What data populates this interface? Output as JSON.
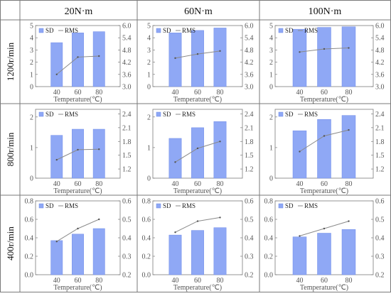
{
  "table": {
    "columns": [
      "20N·m",
      "60N·m",
      "100N·m"
    ],
    "rows": [
      "1200r/min",
      "800r/min",
      "400r/min"
    ]
  },
  "colors": {
    "bar": "#8fa8f5",
    "bar_stroke": "#6f8be8",
    "line": "#8a8a8a",
    "grid": "#7a7a7a",
    "text": "#555555",
    "border": "#7a7a7a"
  },
  "chart_data": [
    {
      "row": "1200r/min",
      "column": "20N·m",
      "type": "bar+line",
      "categories": [
        "40",
        "60",
        "80"
      ],
      "xlabel": "Temperature(℃)",
      "legend": [
        "SD",
        "RMS"
      ],
      "series": [
        {
          "name": "SD",
          "type": "bar",
          "axis": "left",
          "values": [
            3.6,
            4.4,
            4.5
          ]
        },
        {
          "name": "RMS",
          "type": "line",
          "axis": "right",
          "values": [
            3.6,
            4.45,
            4.5
          ]
        }
      ],
      "left_axis": {
        "ylim": [
          0,
          5
        ],
        "ticks": [
          "0",
          "1",
          "2",
          "3",
          "4",
          "5"
        ]
      },
      "right_axis": {
        "ylim": [
          3.0,
          6.0
        ],
        "ticks": [
          "3.0",
          "3.6",
          "4.2",
          "4.8",
          "5.4",
          "6.0"
        ]
      }
    },
    {
      "row": "1200r/min",
      "column": "60N·m",
      "type": "bar+line",
      "categories": [
        "40",
        "60",
        "80"
      ],
      "xlabel": "Temperature(℃)",
      "legend": [
        "SD",
        "RMS"
      ],
      "series": [
        {
          "name": "SD",
          "type": "bar",
          "axis": "left",
          "values": [
            4.4,
            4.6,
            4.8
          ]
        },
        {
          "name": "RMS",
          "type": "line",
          "axis": "right",
          "values": [
            4.4,
            4.6,
            4.75
          ]
        }
      ],
      "left_axis": {
        "ylim": [
          0,
          5
        ],
        "ticks": [
          "0",
          "1",
          "2",
          "3",
          "4",
          "5"
        ]
      },
      "right_axis": {
        "ylim": [
          3.0,
          6.0
        ],
        "ticks": [
          "3.0",
          "3.6",
          "4.2",
          "4.8",
          "5.4",
          "6.0"
        ]
      }
    },
    {
      "row": "1200r/min",
      "column": "100N·m",
      "type": "bar+line",
      "categories": [
        "40",
        "60",
        "80"
      ],
      "xlabel": "Temperature(℃)",
      "legend": [
        "SD",
        "RMS"
      ],
      "series": [
        {
          "name": "SD",
          "type": "bar",
          "axis": "left",
          "values": [
            4.7,
            4.85,
            4.9
          ]
        },
        {
          "name": "RMS",
          "type": "line",
          "axis": "right",
          "values": [
            4.7,
            4.85,
            4.9
          ]
        }
      ],
      "left_axis": {
        "ylim": [
          0,
          5
        ],
        "ticks": [
          "0",
          "1",
          "2",
          "3",
          "4",
          "5"
        ]
      },
      "right_axis": {
        "ylim": [
          3.0,
          6.0
        ],
        "ticks": [
          "3.0",
          "3.6",
          "4.2",
          "4.8",
          "5.4",
          "6.0"
        ]
      }
    },
    {
      "row": "800r/min",
      "column": "20N·m",
      "type": "bar+line",
      "categories": [
        "40",
        "60",
        "80"
      ],
      "xlabel": "Temperature(℃)",
      "legend": [
        "SD",
        "RMS"
      ],
      "series": [
        {
          "name": "SD",
          "type": "bar",
          "axis": "left",
          "values": [
            1.4,
            1.6,
            1.6
          ]
        },
        {
          "name": "RMS",
          "type": "line",
          "axis": "right",
          "values": [
            1.4,
            1.62,
            1.63
          ]
        }
      ],
      "left_axis": {
        "ylim": [
          0,
          2.25
        ],
        "ticks": [
          "0",
          "1",
          "2"
        ]
      },
      "right_axis": {
        "ylim": [
          1.0,
          2.5
        ],
        "ticks": [
          "1.2",
          "1.5",
          "1.8",
          "2.1",
          "2.4"
        ]
      }
    },
    {
      "row": "800r/min",
      "column": "60N·m",
      "type": "bar+line",
      "categories": [
        "40",
        "60",
        "80"
      ],
      "xlabel": "Temperature(℃)",
      "legend": [
        "SD",
        "RMS"
      ],
      "series": [
        {
          "name": "SD",
          "type": "bar",
          "axis": "left",
          "values": [
            1.3,
            1.65,
            1.85
          ]
        },
        {
          "name": "RMS",
          "type": "line",
          "axis": "right",
          "values": [
            1.35,
            1.65,
            1.8
          ]
        }
      ],
      "left_axis": {
        "ylim": [
          0,
          2.25
        ],
        "ticks": [
          "0",
          "1",
          "2"
        ]
      },
      "right_axis": {
        "ylim": [
          1.0,
          2.5
        ],
        "ticks": [
          "1.2",
          "1.5",
          "1.8",
          "2.1",
          "2.4"
        ]
      }
    },
    {
      "row": "800r/min",
      "column": "100N·m",
      "type": "bar+line",
      "categories": [
        "40",
        "60",
        "80"
      ],
      "xlabel": "Temperature(℃)",
      "legend": [
        "SD",
        "RMS"
      ],
      "series": [
        {
          "name": "SD",
          "type": "bar",
          "axis": "left",
          "values": [
            1.55,
            1.92,
            2.05
          ]
        },
        {
          "name": "RMS",
          "type": "line",
          "axis": "right",
          "values": [
            1.58,
            1.92,
            2.05
          ]
        }
      ],
      "left_axis": {
        "ylim": [
          0,
          2.25
        ],
        "ticks": [
          "0",
          "1",
          "2"
        ]
      },
      "right_axis": {
        "ylim": [
          1.0,
          2.5
        ],
        "ticks": [
          "1.2",
          "1.5",
          "1.8",
          "2.1",
          "2.4"
        ]
      }
    },
    {
      "row": "400r/min",
      "column": "20N·m",
      "type": "bar+line",
      "categories": [
        "40",
        "60",
        "80"
      ],
      "xlabel": "Temperature(℃)",
      "legend": [
        "SD",
        "RMS"
      ],
      "series": [
        {
          "name": "SD",
          "type": "bar",
          "axis": "left",
          "values": [
            0.37,
            0.44,
            0.5
          ]
        },
        {
          "name": "RMS",
          "type": "line",
          "axis": "right",
          "values": [
            0.38,
            0.45,
            0.5
          ]
        }
      ],
      "left_axis": {
        "ylim": [
          0,
          0.8
        ],
        "ticks": [
          "0.0",
          "0.2",
          "0.4",
          "0.6",
          "0.8"
        ]
      },
      "right_axis": {
        "ylim": [
          0.2,
          0.6
        ],
        "ticks": [
          "0.2",
          "0.3",
          "0.4",
          "0.5",
          "0.6"
        ]
      }
    },
    {
      "row": "400r/min",
      "column": "60N·m",
      "type": "bar+line",
      "categories": [
        "40",
        "60",
        "80"
      ],
      "xlabel": "Temperature(℃)",
      "legend": [
        "SD",
        "RMS"
      ],
      "series": [
        {
          "name": "SD",
          "type": "bar",
          "axis": "left",
          "values": [
            0.43,
            0.48,
            0.51
          ]
        },
        {
          "name": "RMS",
          "type": "line",
          "axis": "right",
          "values": [
            0.43,
            0.49,
            0.51
          ]
        }
      ],
      "left_axis": {
        "ylim": [
          0,
          0.8
        ],
        "ticks": [
          "0.0",
          "0.2",
          "0.4",
          "0.6",
          "0.8"
        ]
      },
      "right_axis": {
        "ylim": [
          0.2,
          0.6
        ],
        "ticks": [
          "0.2",
          "0.3",
          "0.4",
          "0.5",
          "0.6"
        ]
      }
    },
    {
      "row": "400r/min",
      "column": "100N·m",
      "type": "bar+line",
      "categories": [
        "40",
        "60",
        "80"
      ],
      "xlabel": "Temperature(℃)",
      "legend": [
        "SD",
        "RMS"
      ],
      "series": [
        {
          "name": "SD",
          "type": "bar",
          "axis": "left",
          "values": [
            0.41,
            0.45,
            0.49
          ]
        },
        {
          "name": "RMS",
          "type": "line",
          "axis": "right",
          "values": [
            0.41,
            0.45,
            0.49
          ]
        }
      ],
      "left_axis": {
        "ylim": [
          0,
          0.8
        ],
        "ticks": [
          "0.0",
          "0.2",
          "0.4",
          "0.6",
          "0.8"
        ]
      },
      "right_axis": {
        "ylim": [
          0.2,
          0.6
        ],
        "ticks": [
          "0.2",
          "0.3",
          "0.4",
          "0.5",
          "0.6"
        ]
      }
    }
  ]
}
